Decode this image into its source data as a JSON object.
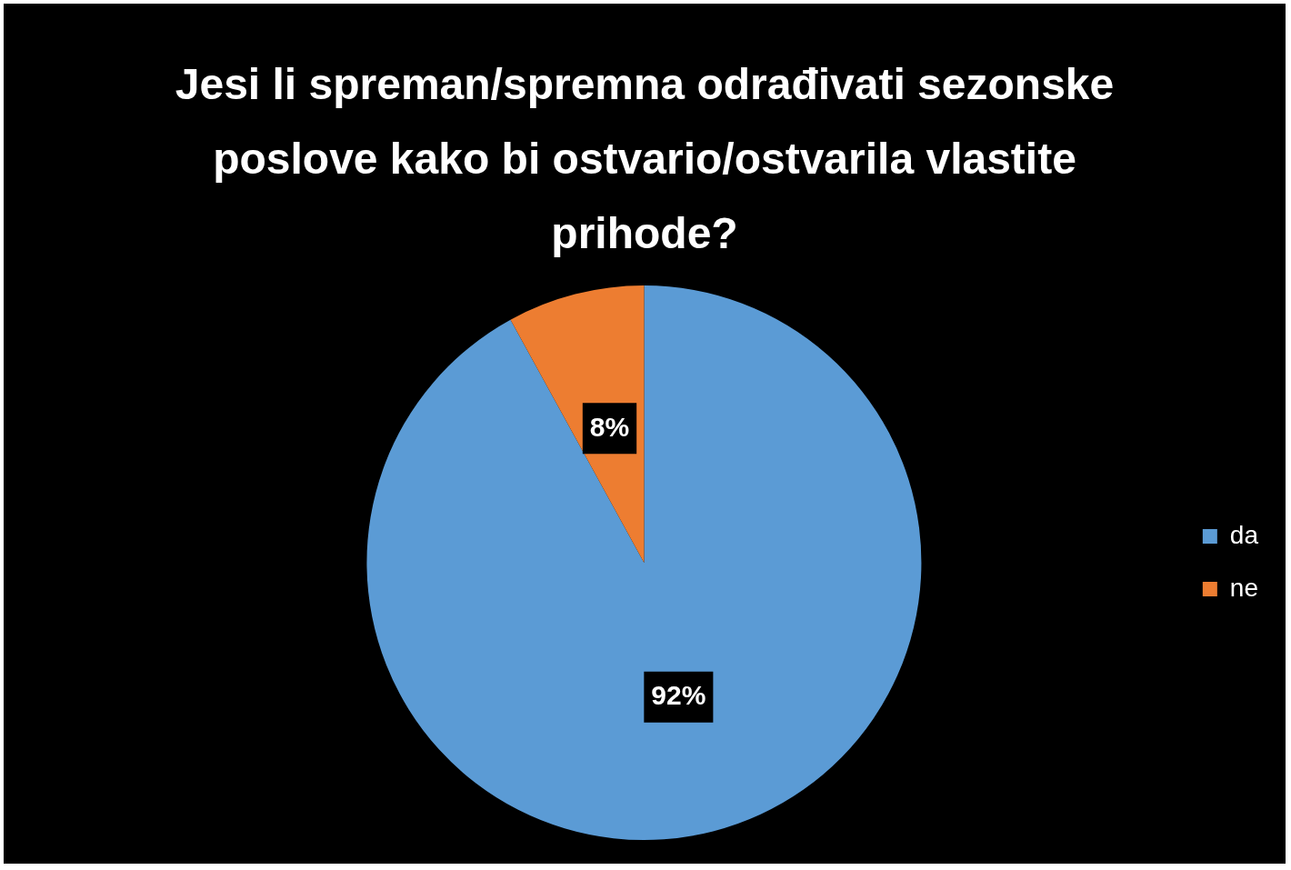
{
  "chart_data": {
    "type": "pie",
    "title": "Jesi li spreman/spremna odrađivati sezonske poslove kako bi ostvario/ostvarila vlastite prihode?",
    "categories": [
      "da",
      "ne"
    ],
    "values": [
      92,
      8
    ],
    "value_labels": [
      "92%",
      "8%"
    ],
    "colors": [
      "#5b9bd5",
      "#ed7d31"
    ],
    "legend": "right"
  }
}
